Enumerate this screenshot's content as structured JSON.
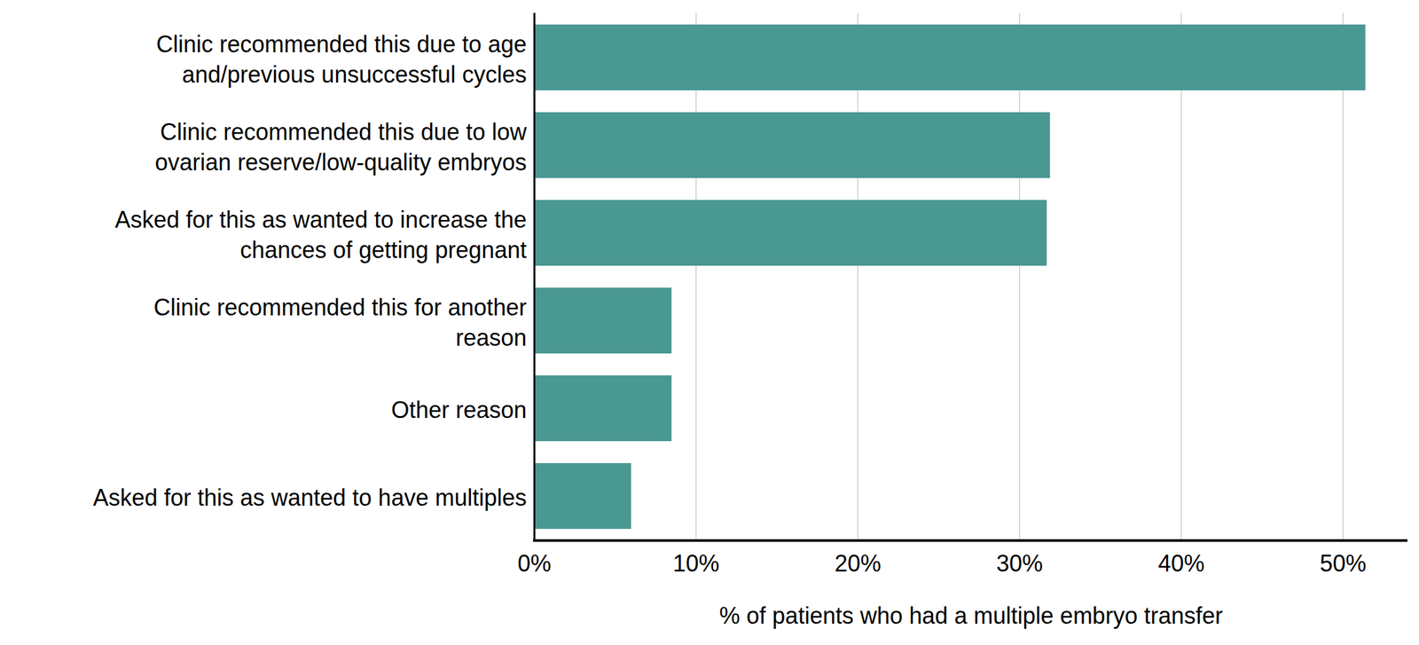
{
  "chart_data": {
    "type": "bar",
    "orientation": "horizontal",
    "categories": [
      "Clinic recommended this due to age\nand/previous unsuccessful cycles",
      "Clinic recommended this due to low\novarian reserve/low-quality embryos",
      "Asked for this as wanted to increase the\nchances of getting pregnant",
      "Clinic recommended this for another\nreason",
      "Other reason",
      "Asked for this as wanted to have multiples"
    ],
    "values": [
      51.4,
      31.9,
      31.7,
      8.5,
      8.5,
      6.0
    ],
    "color": "#4a9892",
    "x_label": "% of patients who had a multiple embryo transfer",
    "xlim": [
      0,
      54
    ],
    "xticks": [
      {
        "value": 0,
        "label": "0%"
      },
      {
        "value": 10,
        "label": "10%"
      },
      {
        "value": 20,
        "label": "20%"
      },
      {
        "value": 30,
        "label": "30%"
      },
      {
        "value": 40,
        "label": "40%"
      },
      {
        "value": 50,
        "label": "50%"
      }
    ],
    "grid": true
  }
}
